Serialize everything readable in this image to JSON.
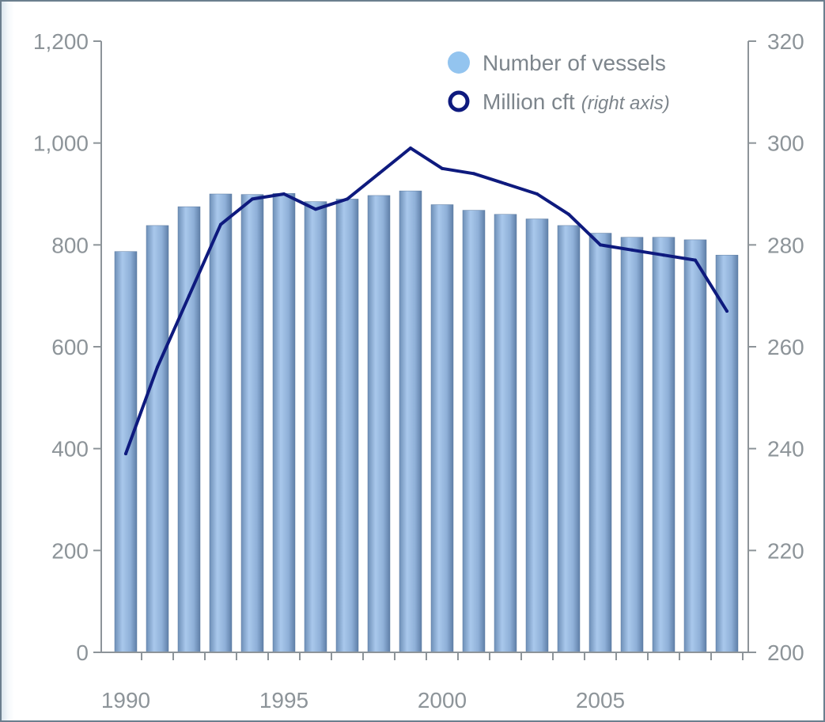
{
  "chart_data": {
    "type": "bar",
    "x": [
      1990,
      1991,
      1992,
      1993,
      1994,
      1995,
      1996,
      1997,
      1998,
      1999,
      2000,
      2001,
      2002,
      2003,
      2004,
      2005,
      2006,
      2007,
      2008,
      2009
    ],
    "x_tick_labels": [
      "1990",
      "1995",
      "2000",
      "2005"
    ],
    "x_tick_values": [
      1990,
      1995,
      2000,
      2005
    ],
    "series": [
      {
        "name": "Number of vessels",
        "type": "bar",
        "axis": "left",
        "color": "#8fb6dd",
        "values": [
          787,
          838,
          875,
          900,
          899,
          901,
          885,
          890,
          897,
          906,
          879,
          868,
          860,
          851,
          838,
          823,
          815,
          815,
          810,
          780
        ]
      },
      {
        "name": "Million cft",
        "name_suffix": "(right axis)",
        "type": "line",
        "axis": "right",
        "color": "#0e1a7e",
        "values": [
          239,
          256,
          270,
          284,
          289,
          290,
          287,
          289,
          294,
          299,
          295,
          294,
          292,
          290,
          286,
          280,
          279,
          278,
          277,
          267
        ]
      }
    ],
    "y_left": {
      "lim": [
        0,
        1200
      ],
      "ticks": [
        0,
        200,
        400,
        600,
        800,
        1000,
        1200
      ],
      "tick_labels": [
        "0",
        "200",
        "400",
        "600",
        "800",
        "1,000",
        "1,200"
      ]
    },
    "y_right": {
      "lim": [
        200,
        320
      ],
      "ticks": [
        200,
        220,
        240,
        260,
        280,
        300,
        320
      ],
      "tick_labels": [
        "200",
        "220",
        "240",
        "260",
        "280",
        "300",
        "320"
      ]
    },
    "title": "",
    "xlabel": "",
    "ylabel": "",
    "grid": false,
    "legend_position": "top-right"
  }
}
